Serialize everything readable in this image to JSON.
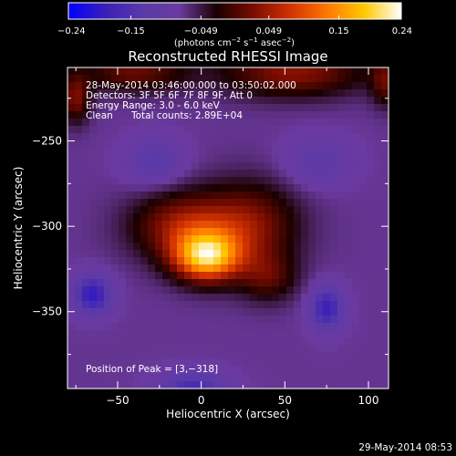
{
  "chart_data": {
    "type": "heatmap",
    "title": "Reconstructed RHESSI Image",
    "xlabel": "Heliocentric X (arcsec)",
    "ylabel": "Heliocentric Y (arcsec)",
    "xlim": [
      -80,
      112
    ],
    "ylim": [
      -395,
      -207
    ],
    "x_ticks": [
      -50,
      0,
      50,
      100
    ],
    "y_ticks": [
      -250,
      -300,
      -350
    ],
    "x_tick_labels": [
      "−50",
      "0",
      "50",
      "100"
    ],
    "y_tick_labels": [
      "−250",
      "−300",
      "−350"
    ],
    "colorbar": {
      "range": [
        -0.24,
        0.24
      ],
      "ticks": [
        -0.24,
        -0.15,
        -0.049,
        0.049,
        0.15,
        0.24
      ],
      "tick_labels": [
        "−0.24",
        "−0.15",
        "−0.049",
        "0.049",
        "0.15",
        "0.24"
      ],
      "unit_text": "(photons cm",
      "unit_exp1": "−2",
      "unit_mid": " s",
      "unit_exp2": "−1",
      "unit_mid2": " asec",
      "unit_exp3": "−2",
      "unit_close": ")",
      "colors": [
        "#0000ff",
        "#3a1fb8",
        "#5a3aa8",
        "#6b3aa0",
        "#1a0000",
        "#7a0c00",
        "#d23200",
        "#ff7800",
        "#ffc800",
        "#ffffff"
      ]
    },
    "annotations": {
      "time_range": "28-May-2014 03:46:00.000 to 03:50:02.000",
      "detectors": "Detectors: 3F 5F 6F 7F 8F 9F, Att 0",
      "energy": "Energy Range: 3.0 - 6.0 keV",
      "method": "Clean",
      "counts": "Total counts: 2.89E+04",
      "peak": "Position of Peak = [3,−318]"
    },
    "peak": [
      3,
      -318
    ],
    "sources": [
      {
        "x": 3,
        "y": -318,
        "sigma_x": 14,
        "sigma_y": 10,
        "amp": 0.24
      },
      {
        "x": -10,
        "y": -300,
        "sigma_x": 22,
        "sigma_y": 14,
        "amp": 0.12
      },
      {
        "x": 30,
        "y": -300,
        "sigma_x": 20,
        "sigma_y": 18,
        "amp": 0.1
      },
      {
        "x": 40,
        "y": -330,
        "sigma_x": 12,
        "sigma_y": 10,
        "amp": 0.07
      },
      {
        "x": -40,
        "y": -210,
        "sigma_x": 22,
        "sigma_y": 8,
        "amp": 0.09
      },
      {
        "x": 55,
        "y": -210,
        "sigma_x": 30,
        "sigma_y": 10,
        "amp": 0.11
      },
      {
        "x": -75,
        "y": -225,
        "sigma_x": 6,
        "sigma_y": 10,
        "amp": 0.1
      },
      {
        "x": 110,
        "y": -215,
        "sigma_x": 6,
        "sigma_y": 10,
        "amp": 0.08
      },
      {
        "x": -65,
        "y": -340,
        "sigma_x": 8,
        "sigma_y": 8,
        "amp": -0.12
      },
      {
        "x": 75,
        "y": -348,
        "sigma_x": 7,
        "sigma_y": 9,
        "amp": -0.11
      },
      {
        "x": -5,
        "y": -395,
        "sigma_x": 14,
        "sigma_y": 7,
        "amp": -0.09
      },
      {
        "x": -28,
        "y": -262,
        "sigma_x": 12,
        "sigma_y": 10,
        "amp": -0.06
      },
      {
        "x": 70,
        "y": -262,
        "sigma_x": 14,
        "sigma_y": 10,
        "amp": -0.05
      }
    ],
    "background": -0.075,
    "grid": false
  },
  "footer": {
    "timestamp": "29-May-2014 08:53"
  }
}
